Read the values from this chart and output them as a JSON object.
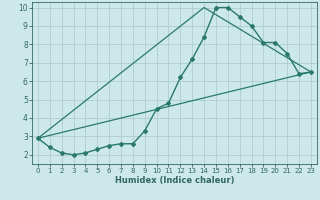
{
  "xlabel": "Humidex (Indice chaleur)",
  "xlim": [
    -0.5,
    23.5
  ],
  "ylim": [
    1.5,
    10.3
  ],
  "yticks": [
    2,
    3,
    4,
    5,
    6,
    7,
    8,
    9,
    10
  ],
  "xticks": [
    0,
    1,
    2,
    3,
    4,
    5,
    6,
    7,
    8,
    9,
    10,
    11,
    12,
    13,
    14,
    15,
    16,
    17,
    18,
    19,
    20,
    21,
    22,
    23
  ],
  "bg_color": "#cce8e8",
  "grid_color": "#b0cccc",
  "line_color": "#2a7a6a",
  "axis_color": "#336666",
  "lines": [
    {
      "x": [
        0,
        1,
        2,
        3,
        4,
        5,
        6,
        7,
        8,
        9,
        10,
        11,
        12,
        13,
        14,
        15,
        16,
        17,
        18,
        19,
        20,
        21,
        22,
        23
      ],
      "y": [
        2.9,
        2.4,
        2.1,
        2.0,
        2.1,
        2.3,
        2.5,
        2.6,
        2.6,
        3.3,
        4.5,
        4.8,
        6.2,
        7.2,
        8.4,
        10.0,
        10.0,
        9.5,
        9.0,
        8.1,
        8.1,
        7.5,
        6.4,
        6.5
      ],
      "marker": "D",
      "markersize": 2.0,
      "linewidth": 1.0
    },
    {
      "x": [
        0,
        23
      ],
      "y": [
        2.9,
        6.5
      ],
      "marker": null,
      "linewidth": 0.9
    },
    {
      "x": [
        0,
        14,
        23
      ],
      "y": [
        2.9,
        10.0,
        6.5
      ],
      "marker": null,
      "linewidth": 0.9
    }
  ]
}
